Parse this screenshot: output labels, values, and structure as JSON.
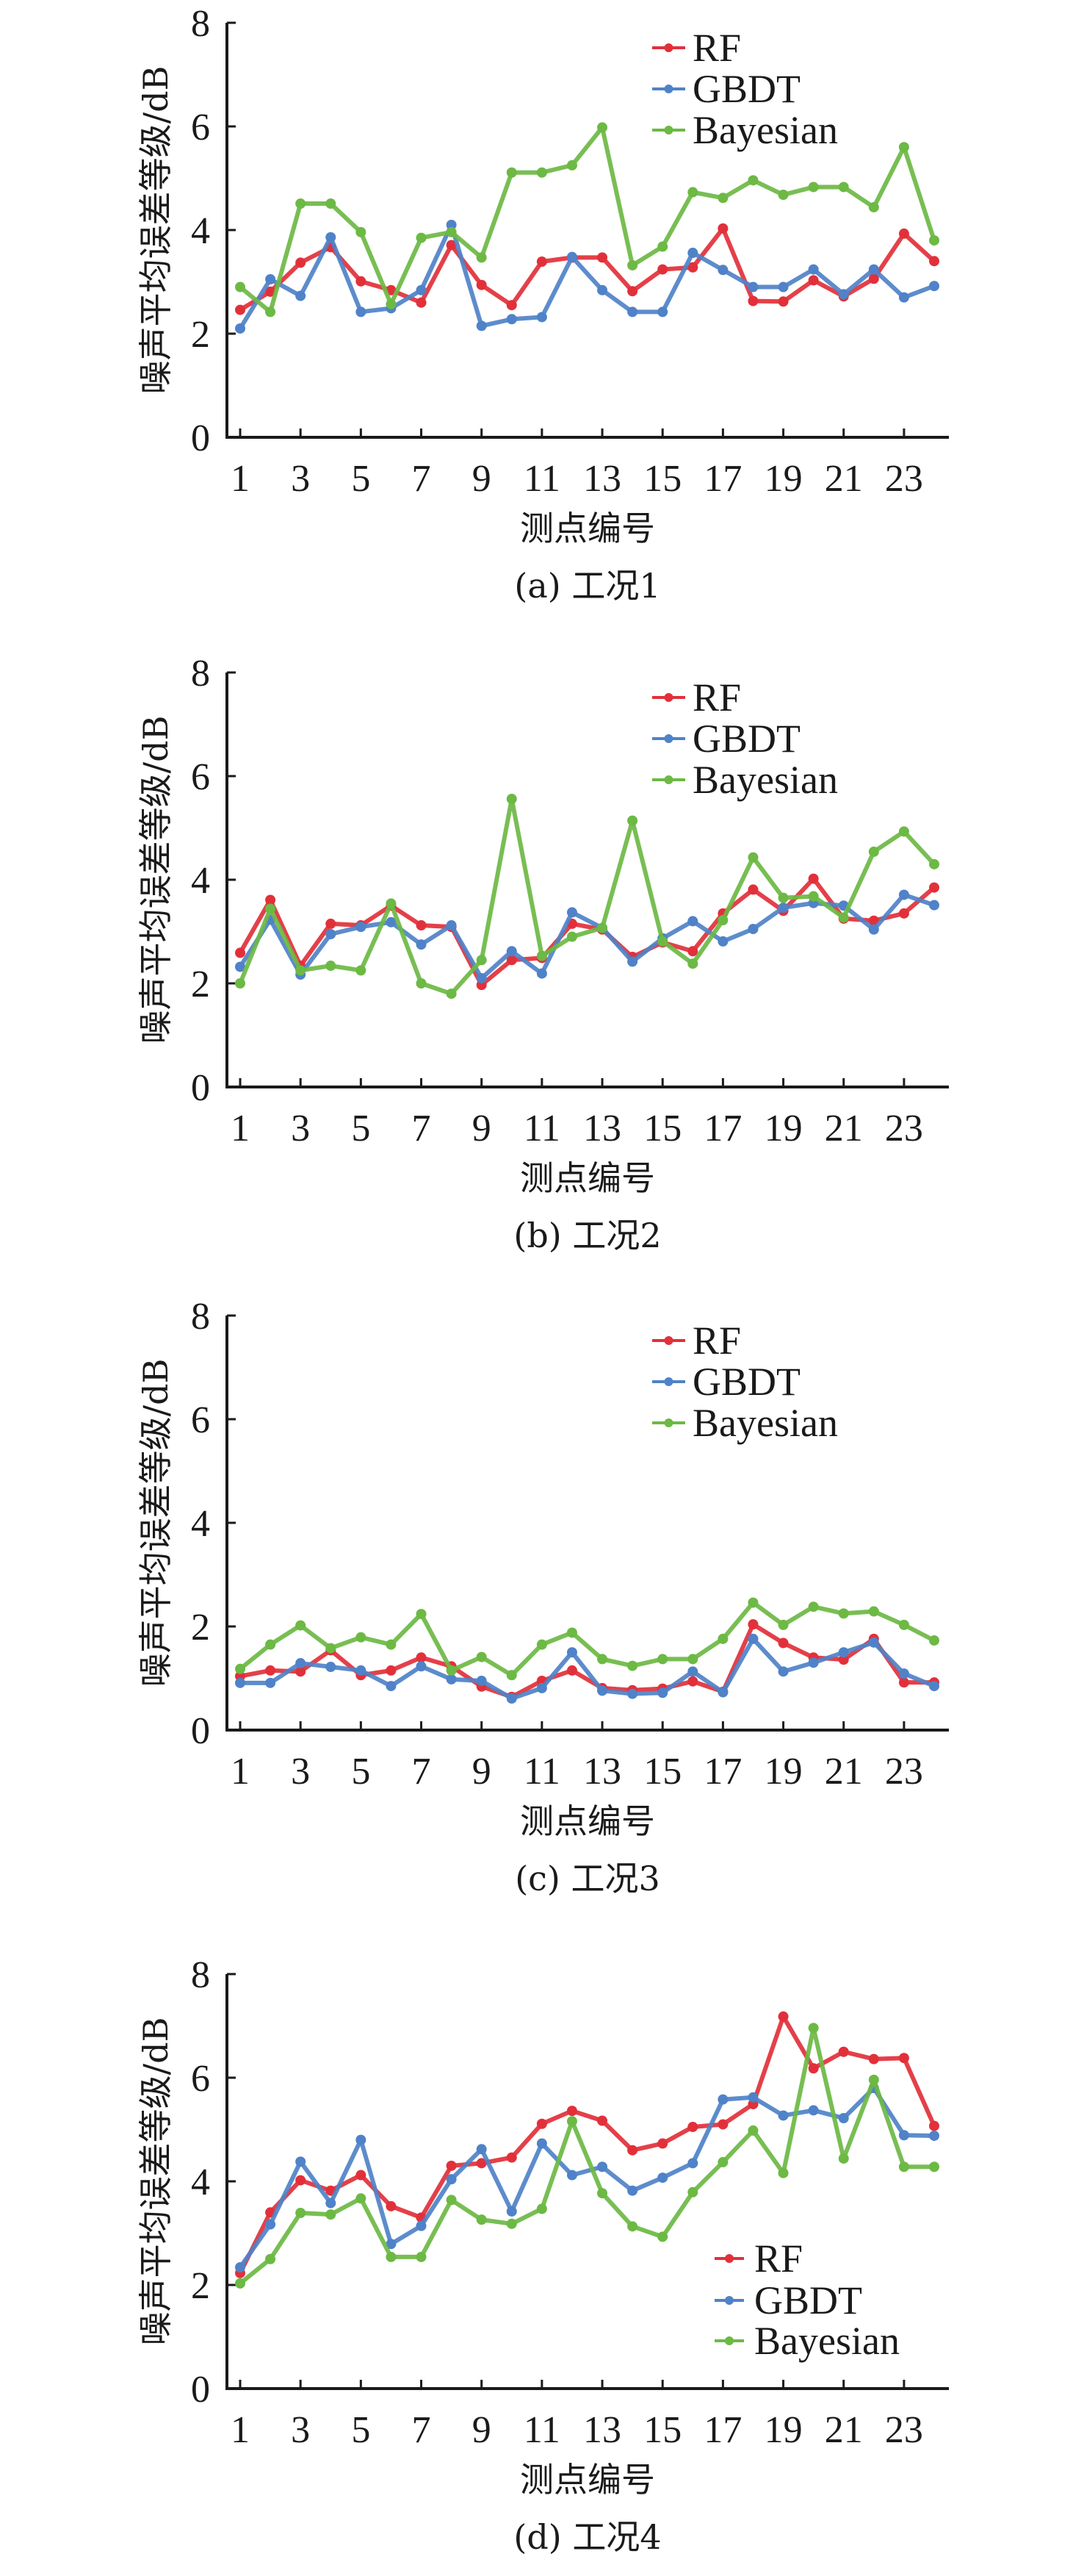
{
  "colors": {
    "RF": "#e2303a",
    "GBDT": "#4f82c8",
    "Bayesian": "#6cb944"
  },
  "chart_data": [
    {
      "type": "line",
      "caption": "(a) 工况1",
      "xlabel": "测点编号",
      "ylabel": "噪声平均误差等级/dB",
      "ylim": [
        0,
        8
      ],
      "yticks": [
        "0",
        "2",
        "4",
        "6",
        "8"
      ],
      "xticks": [
        "1",
        "3",
        "5",
        "7",
        "9",
        "11",
        "13",
        "15",
        "17",
        "19",
        "21",
        "23"
      ],
      "legend_position": "top-right",
      "x": [
        1,
        2,
        3,
        4,
        5,
        6,
        7,
        8,
        9,
        10,
        11,
        12,
        13,
        14,
        15,
        16,
        17,
        18,
        19,
        20,
        21,
        22,
        23,
        24
      ],
      "series": [
        {
          "name": "RF",
          "values": [
            2.46,
            2.81,
            3.37,
            3.67,
            3.01,
            2.84,
            2.6,
            3.71,
            2.94,
            2.55,
            3.39,
            3.47,
            3.47,
            2.82,
            3.24,
            3.28,
            4.03,
            2.63,
            2.62,
            3.03,
            2.72,
            3.06,
            3.93,
            3.4
          ]
        },
        {
          "name": "GBDT",
          "values": [
            2.1,
            3.05,
            2.73,
            3.86,
            2.42,
            2.49,
            2.84,
            4.1,
            2.15,
            2.28,
            2.32,
            3.48,
            2.84,
            2.42,
            2.42,
            3.56,
            3.23,
            2.9,
            2.9,
            3.24,
            2.76,
            3.24,
            2.7,
            2.92
          ]
        },
        {
          "name": "Bayesian",
          "values": [
            2.9,
            2.42,
            4.51,
            4.51,
            3.96,
            2.57,
            3.85,
            3.96,
            3.47,
            5.11,
            5.11,
            5.25,
            5.98,
            3.32,
            3.68,
            4.73,
            4.62,
            4.96,
            4.68,
            4.83,
            4.83,
            4.44,
            5.6,
            3.8
          ]
        }
      ]
    },
    {
      "type": "line",
      "caption": "(b) 工况2",
      "xlabel": "测点编号",
      "ylabel": "噪声平均误差等级/dB",
      "ylim": [
        0,
        8
      ],
      "yticks": [
        "0",
        "2",
        "4",
        "6",
        "8"
      ],
      "xticks": [
        "1",
        "3",
        "5",
        "7",
        "9",
        "11",
        "13",
        "15",
        "17",
        "19",
        "21",
        "23"
      ],
      "legend_position": "top-right",
      "x": [
        1,
        2,
        3,
        4,
        5,
        6,
        7,
        8,
        9,
        10,
        11,
        12,
        13,
        14,
        15,
        16,
        17,
        18,
        19,
        20,
        21,
        22,
        23,
        24
      ],
      "series": [
        {
          "name": "RF",
          "values": [
            2.59,
            3.61,
            2.34,
            3.15,
            3.12,
            3.5,
            3.12,
            3.09,
            1.97,
            2.45,
            2.49,
            3.15,
            3.04,
            2.51,
            2.79,
            2.62,
            3.35,
            3.81,
            3.4,
            4.02,
            3.25,
            3.21,
            3.35,
            3.85
          ]
        },
        {
          "name": "GBDT",
          "values": [
            2.32,
            3.23,
            2.17,
            2.95,
            3.09,
            3.18,
            2.75,
            3.12,
            2.1,
            2.62,
            2.19,
            3.37,
            3.07,
            2.42,
            2.87,
            3.2,
            2.81,
            3.05,
            3.46,
            3.55,
            3.5,
            3.04,
            3.71,
            3.51
          ]
        },
        {
          "name": "Bayesian",
          "values": [
            2.0,
            3.44,
            2.25,
            2.34,
            2.25,
            3.54,
            2.0,
            1.8,
            2.45,
            5.56,
            2.53,
            2.9,
            3.07,
            5.14,
            2.81,
            2.38,
            3.22,
            4.43,
            3.65,
            3.68,
            3.27,
            4.54,
            4.93,
            4.3
          ]
        }
      ]
    },
    {
      "type": "line",
      "caption": "(c) 工况3",
      "xlabel": "测点编号",
      "ylabel": "噪声平均误差等级/dB",
      "ylim": [
        0,
        8
      ],
      "yticks": [
        "0",
        "2",
        "4",
        "6",
        "8"
      ],
      "xticks": [
        "1",
        "3",
        "5",
        "7",
        "9",
        "11",
        "13",
        "15",
        "17",
        "19",
        "21",
        "23"
      ],
      "legend_position": "top-right",
      "x": [
        1,
        2,
        3,
        4,
        5,
        6,
        7,
        8,
        9,
        10,
        11,
        12,
        13,
        14,
        15,
        16,
        17,
        18,
        19,
        20,
        21,
        22,
        23,
        24
      ],
      "series": [
        {
          "name": "RF",
          "values": [
            1.04,
            1.15,
            1.13,
            1.54,
            1.06,
            1.15,
            1.4,
            1.23,
            0.84,
            0.64,
            0.95,
            1.15,
            0.81,
            0.77,
            0.8,
            0.94,
            0.74,
            2.04,
            1.68,
            1.4,
            1.36,
            1.76,
            0.92,
            0.92
          ]
        },
        {
          "name": "GBDT",
          "values": [
            0.91,
            0.91,
            1.29,
            1.22,
            1.15,
            0.85,
            1.23,
            0.98,
            0.95,
            0.61,
            0.81,
            1.5,
            0.76,
            0.7,
            0.72,
            1.13,
            0.73,
            1.76,
            1.13,
            1.3,
            1.5,
            1.69,
            1.09,
            0.85
          ]
        },
        {
          "name": "Bayesian",
          "values": [
            1.18,
            1.65,
            2.02,
            1.58,
            1.79,
            1.65,
            2.24,
            1.15,
            1.41,
            1.06,
            1.65,
            1.88,
            1.37,
            1.24,
            1.37,
            1.37,
            1.76,
            2.46,
            2.03,
            2.38,
            2.25,
            2.29,
            2.03,
            1.73
          ]
        }
      ]
    },
    {
      "type": "line",
      "caption": "(d) 工况4",
      "xlabel": "测点编号",
      "ylabel": "噪声平均误差等级/dB",
      "ylim": [
        0,
        8
      ],
      "yticks": [
        "0",
        "2",
        "4",
        "6",
        "8"
      ],
      "xticks": [
        "1",
        "3",
        "5",
        "7",
        "9",
        "11",
        "13",
        "15",
        "17",
        "19",
        "21",
        "23"
      ],
      "legend_position": "bottom-right",
      "x": [
        1,
        2,
        3,
        4,
        5,
        6,
        7,
        8,
        9,
        10,
        11,
        12,
        13,
        14,
        15,
        16,
        17,
        18,
        19,
        20,
        21,
        22,
        23,
        24
      ],
      "series": [
        {
          "name": "RF",
          "values": [
            2.23,
            3.4,
            4.02,
            3.82,
            4.12,
            3.52,
            3.3,
            4.3,
            4.35,
            4.46,
            5.11,
            5.36,
            5.17,
            4.6,
            4.73,
            5.05,
            5.1,
            5.49,
            7.18,
            6.18,
            6.5,
            6.36,
            6.38,
            5.07
          ]
        },
        {
          "name": "GBDT",
          "values": [
            2.34,
            3.17,
            4.38,
            3.58,
            4.8,
            2.79,
            3.14,
            4.04,
            4.62,
            3.42,
            4.73,
            4.12,
            4.28,
            3.82,
            4.07,
            4.35,
            5.58,
            5.62,
            5.27,
            5.37,
            5.22,
            5.8,
            4.89,
            4.88
          ]
        },
        {
          "name": "Bayesian",
          "values": [
            2.03,
            2.5,
            3.39,
            3.36,
            3.67,
            2.54,
            2.54,
            3.64,
            3.26,
            3.18,
            3.47,
            5.16,
            3.77,
            3.13,
            2.93,
            3.79,
            4.37,
            4.98,
            4.16,
            6.96,
            4.44,
            5.96,
            4.28,
            4.28
          ]
        }
      ]
    }
  ]
}
